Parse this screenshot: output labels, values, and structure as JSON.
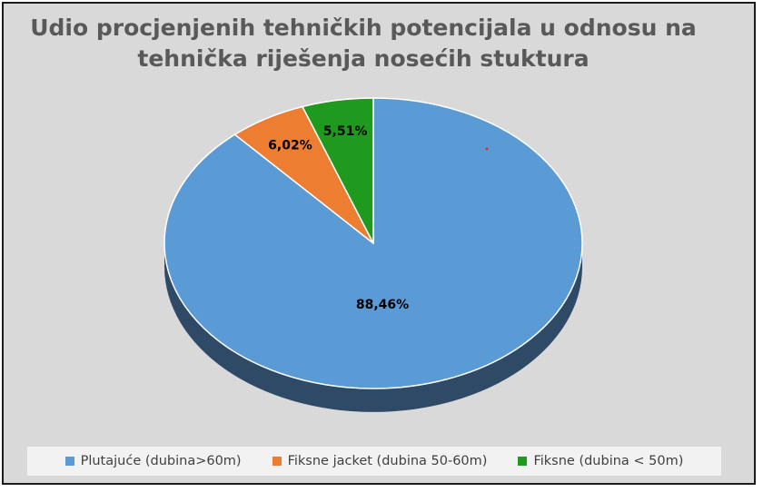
{
  "chart_data": {
    "type": "pie",
    "title_lines": [
      "Udio procjenjenih tehničkih potencijala u odnosu na",
      "tehnička riješenja nosećih stuktura"
    ],
    "slices": [
      {
        "label": "Plutajuće (dubina>60m)",
        "value": 88.46,
        "value_label": "88,46%",
        "color": "#5b9bd5",
        "side_color": "#2e4a66"
      },
      {
        "label": "Fiksne jacket (dubina 50-60m)",
        "value": 6.02,
        "value_label": "6,02%",
        "color": "#ed7d31",
        "side_color": "#8a4516"
      },
      {
        "label": "Fiksne (dubina < 50m)",
        "value": 5.51,
        "value_label": "5,51%",
        "color": "#1f9a1f",
        "side_color": "#0f5a0f"
      }
    ],
    "legend_position": "bottom",
    "style": "3d"
  }
}
